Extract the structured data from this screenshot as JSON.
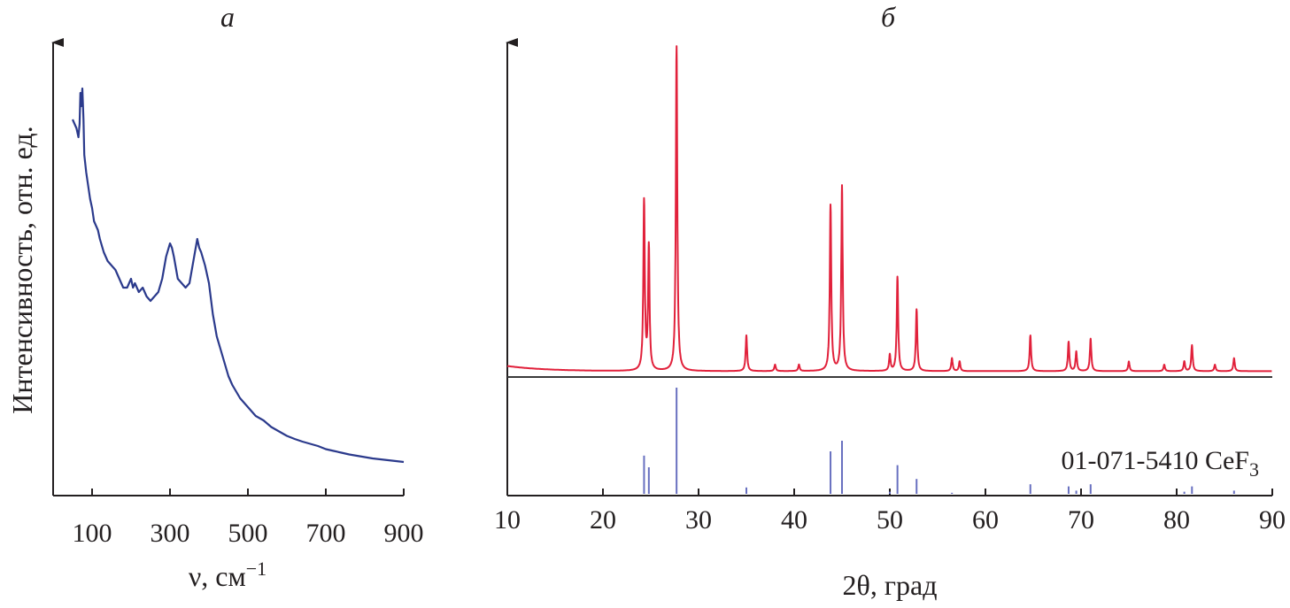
{
  "chart_data": [
    {
      "panel": "a",
      "type": "line",
      "title": "а",
      "xlabel": "ν, см",
      "xlabel_sup": "−1",
      "ylabel": "Интенсивность, отн. ед.",
      "xlim": [
        0,
        900
      ],
      "xticks": [
        100,
        300,
        500,
        700,
        900
      ],
      "xtick_labels": [
        "100",
        "300",
        "500",
        "700",
        "900"
      ],
      "ylim": [
        0,
        100
      ],
      "y_tick_labels": false,
      "grid": false,
      "colors": {
        "line": "#2b3a8c",
        "axis": "#231f20"
      },
      "series": [
        {
          "x": [
            50,
            55,
            60,
            65,
            68,
            70,
            72,
            75,
            78,
            80,
            85,
            90,
            95,
            100,
            105,
            110,
            115,
            120,
            130,
            140,
            150,
            160,
            170,
            180,
            190,
            200,
            205,
            210,
            220,
            230,
            240,
            250,
            260,
            270,
            280,
            290,
            300,
            305,
            310,
            320,
            330,
            340,
            350,
            360,
            370,
            375,
            380,
            390,
            400,
            410,
            420,
            430,
            440,
            450,
            460,
            480,
            500,
            520,
            540,
            560,
            580,
            600,
            620,
            640,
            660,
            680,
            700,
            720,
            740,
            760,
            780,
            800,
            820,
            840,
            860,
            880,
            900
          ],
          "y": [
            85,
            84,
            83,
            81,
            84,
            91,
            88,
            92,
            85,
            77,
            73,
            70,
            67,
            65,
            62,
            61,
            60,
            58,
            55,
            53,
            52,
            51,
            49,
            47,
            47,
            49,
            47,
            48,
            46,
            47,
            45,
            44,
            45,
            46,
            49,
            54,
            57,
            56,
            54,
            49,
            48,
            47,
            48,
            53,
            58,
            56,
            55,
            52,
            48,
            41,
            36,
            33,
            30,
            27,
            25,
            22,
            20,
            18,
            17,
            15.5,
            14.5,
            13.5,
            12.8,
            12.2,
            11.7,
            11.2,
            10.5,
            10.1,
            9.7,
            9.3,
            9.0,
            8.7,
            8.4,
            8.2,
            8.0,
            7.8,
            7.6
          ]
        }
      ]
    },
    {
      "panel": "б",
      "type": "line",
      "title": "б",
      "xlabel": "2θ, град",
      "ylabel": "",
      "xlim": [
        10,
        90
      ],
      "xticks": [
        10,
        20,
        30,
        40,
        50,
        60,
        70,
        80,
        90
      ],
      "xtick_labels": [
        "10",
        "20",
        "30",
        "40",
        "50",
        "60",
        "70",
        "80",
        "90"
      ],
      "y_tick_labels": false,
      "grid": false,
      "colors": {
        "pattern": "#e1213b",
        "reference": "#6870c0",
        "baseline": "#3a3a3a",
        "axis": "#231f20"
      },
      "series": [
        {
          "name": "pattern",
          "peaks": [
            {
              "x": 24.3,
              "y": 52
            },
            {
              "x": 24.8,
              "y": 38
            },
            {
              "x": 27.7,
              "y": 100
            },
            {
              "x": 35.0,
              "y": 11
            },
            {
              "x": 38.0,
              "y": 2
            },
            {
              "x": 40.5,
              "y": 2
            },
            {
              "x": 43.8,
              "y": 51
            },
            {
              "x": 45.0,
              "y": 57
            },
            {
              "x": 50.0,
              "y": 5
            },
            {
              "x": 50.8,
              "y": 29
            },
            {
              "x": 52.8,
              "y": 19
            },
            {
              "x": 56.5,
              "y": 4
            },
            {
              "x": 57.3,
              "y": 3
            },
            {
              "x": 64.7,
              "y": 11
            },
            {
              "x": 68.7,
              "y": 9
            },
            {
              "x": 69.5,
              "y": 6
            },
            {
              "x": 71.0,
              "y": 10
            },
            {
              "x": 75.0,
              "y": 3
            },
            {
              "x": 78.7,
              "y": 2
            },
            {
              "x": 80.8,
              "y": 3
            },
            {
              "x": 81.6,
              "y": 8
            },
            {
              "x": 84.0,
              "y": 2
            },
            {
              "x": 86.0,
              "y": 4
            }
          ]
        },
        {
          "name": "01-071-5410 CeF3",
          "label_main": "01-071-5410  CeF",
          "label_sub": "3",
          "type": "stick",
          "sticks": [
            {
              "x": 24.3,
              "y": 36
            },
            {
              "x": 24.8,
              "y": 25
            },
            {
              "x": 27.7,
              "y": 100
            },
            {
              "x": 35.0,
              "y": 6
            },
            {
              "x": 43.8,
              "y": 40
            },
            {
              "x": 45.0,
              "y": 50
            },
            {
              "x": 50.0,
              "y": 2
            },
            {
              "x": 50.8,
              "y": 27
            },
            {
              "x": 52.8,
              "y": 14
            },
            {
              "x": 56.5,
              "y": 1
            },
            {
              "x": 64.7,
              "y": 9
            },
            {
              "x": 68.7,
              "y": 7
            },
            {
              "x": 69.5,
              "y": 3
            },
            {
              "x": 71.0,
              "y": 9
            },
            {
              "x": 80.8,
              "y": 2
            },
            {
              "x": 81.6,
              "y": 7
            },
            {
              "x": 86.0,
              "y": 3
            }
          ]
        }
      ]
    }
  ]
}
